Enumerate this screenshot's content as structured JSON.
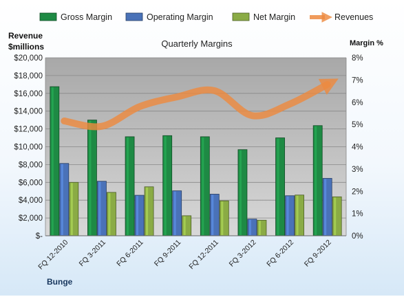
{
  "chart_data": {
    "type": "bar",
    "title": "Quarterly Margins",
    "company": "Bunge",
    "categories": [
      "FQ 12-2010",
      "FQ 3-2011",
      "FQ 6-2011",
      "FQ 9-2011",
      "FQ 12-2011",
      "FQ 3-2012",
      "FQ 6-2012",
      "FQ 9-2012"
    ],
    "ylabel_left": "Revenue $millions",
    "ylabel_right": "Margin %",
    "ylim_left": [
      0,
      20000
    ],
    "ylim_right": [
      0,
      8
    ],
    "yticks_left": [
      "$-",
      "$2,000",
      "$4,000",
      "$6,000",
      "$8,000",
      "$10,000",
      "$12,000",
      "$14,000",
      "$16,000",
      "$18,000",
      "$20,000"
    ],
    "yticks_right": [
      "0%",
      "1%",
      "2%",
      "3%",
      "4%",
      "5%",
      "6%",
      "7%",
      "8%"
    ],
    "grid": true,
    "legend_position": "top",
    "series": [
      {
        "name": "Gross Margin",
        "axis": "right",
        "unit": "%",
        "color": "#1e8a44",
        "values": [
          6.7,
          5.2,
          4.45,
          4.5,
          4.45,
          3.87,
          4.4,
          4.95
        ]
      },
      {
        "name": "Operating Margin",
        "axis": "right",
        "unit": "%",
        "color": "#4a72b8",
        "values": [
          3.25,
          2.45,
          1.82,
          2.02,
          1.87,
          0.75,
          1.8,
          2.58
        ]
      },
      {
        "name": "Net Margin",
        "axis": "right",
        "unit": "%",
        "color": "#8aab45",
        "values": [
          2.4,
          1.95,
          2.2,
          0.9,
          1.57,
          0.7,
          1.83,
          1.75
        ]
      },
      {
        "name": "Revenues",
        "axis": "left",
        "unit": "$millions",
        "type": "line",
        "color": "#ed8a3f",
        "values": [
          12900,
          12300,
          14500,
          15600,
          16300,
          13500,
          14800,
          17000
        ]
      }
    ]
  }
}
